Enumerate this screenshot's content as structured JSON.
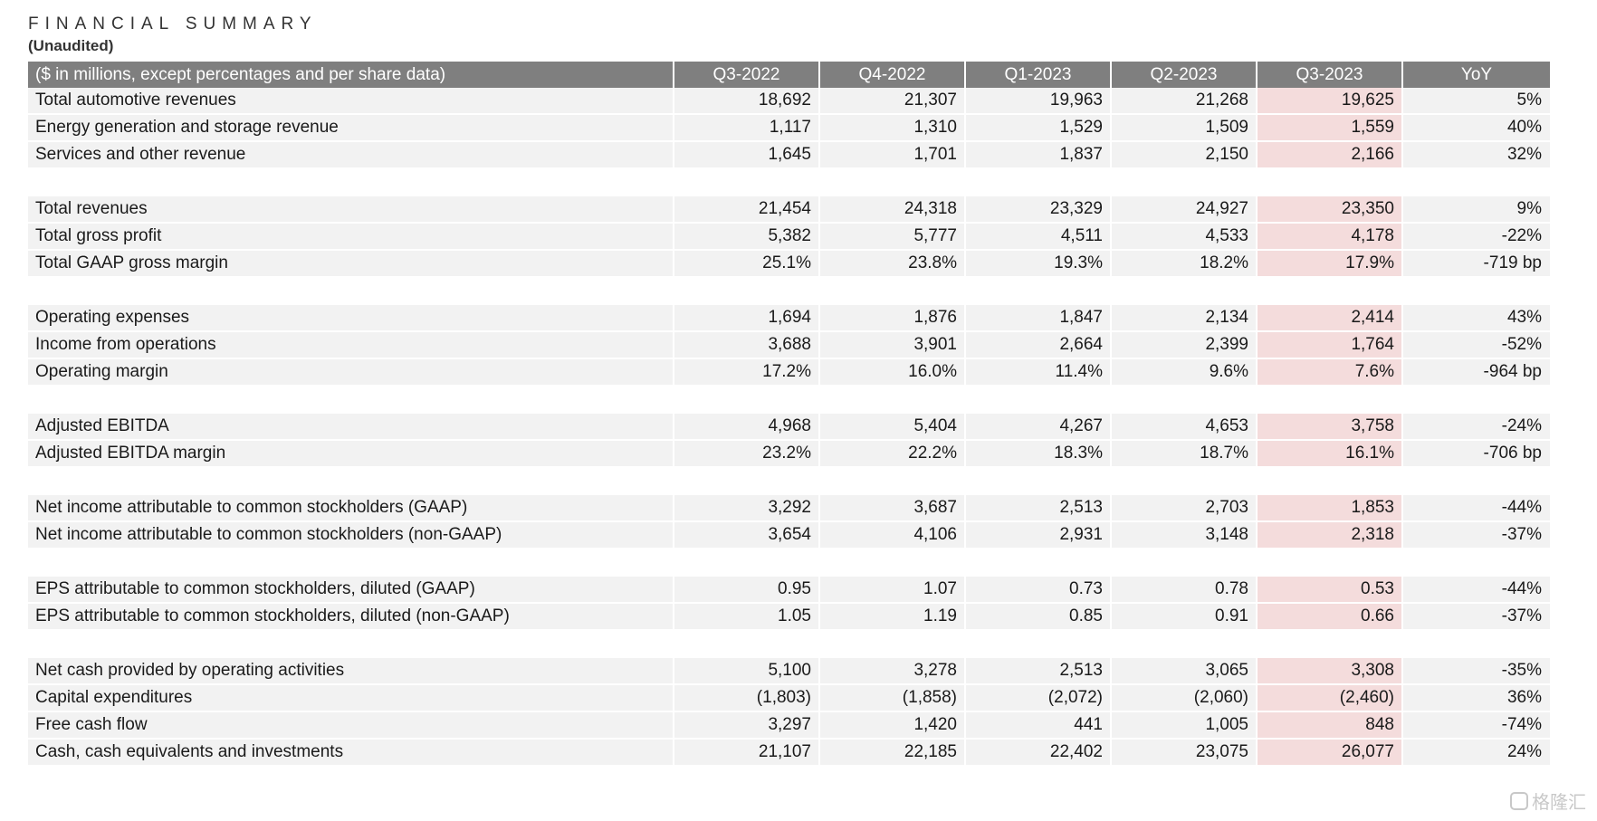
{
  "title": "FINANCIAL SUMMARY",
  "subtitle": "(Unaudited)",
  "table": {
    "columns": [
      "($ in millions, except percentages and per share data)",
      "Q3-2022",
      "Q4-2022",
      "Q1-2023",
      "Q2-2023",
      "Q3-2023",
      "YoY"
    ],
    "highlight_color": "#f4dcdc",
    "header_color": "#7f7f7f",
    "groups": [
      [
        [
          "Total automotive revenues",
          "18,692",
          "21,307",
          "19,963",
          "21,268",
          "19,625",
          "5%"
        ],
        [
          "Energy generation and storage revenue",
          "1,117",
          "1,310",
          "1,529",
          "1,509",
          "1,559",
          "40%"
        ],
        [
          "Services and other revenue",
          "1,645",
          "1,701",
          "1,837",
          "2,150",
          "2,166",
          "32%"
        ]
      ],
      [
        [
          "Total revenues",
          "21,454",
          "24,318",
          "23,329",
          "24,927",
          "23,350",
          "9%"
        ],
        [
          "Total gross profit",
          "5,382",
          "5,777",
          "4,511",
          "4,533",
          "4,178",
          "-22%"
        ],
        [
          "Total GAAP gross margin",
          "25.1%",
          "23.8%",
          "19.3%",
          "18.2%",
          "17.9%",
          "-719 bp"
        ]
      ],
      [
        [
          "Operating expenses",
          "1,694",
          "1,876",
          "1,847",
          "2,134",
          "2,414",
          "43%"
        ],
        [
          "Income from operations",
          "3,688",
          "3,901",
          "2,664",
          "2,399",
          "1,764",
          "-52%"
        ],
        [
          "Operating margin",
          "17.2%",
          "16.0%",
          "11.4%",
          "9.6%",
          "7.6%",
          "-964 bp"
        ]
      ],
      [
        [
          "Adjusted EBITDA",
          "4,968",
          "5,404",
          "4,267",
          "4,653",
          "3,758",
          "-24%"
        ],
        [
          "Adjusted EBITDA margin",
          "23.2%",
          "22.2%",
          "18.3%",
          "18.7%",
          "16.1%",
          "-706 bp"
        ]
      ],
      [
        [
          "Net income attributable to common stockholders (GAAP)",
          "3,292",
          "3,687",
          "2,513",
          "2,703",
          "1,853",
          "-44%"
        ],
        [
          "Net income attributable to common stockholders (non-GAAP)",
          "3,654",
          "4,106",
          "2,931",
          "3,148",
          "2,318",
          "-37%"
        ]
      ],
      [
        [
          "EPS attributable to common stockholders, diluted (GAAP)",
          "0.95",
          "1.07",
          "0.73",
          "0.78",
          "0.53",
          "-44%"
        ],
        [
          "EPS attributable to common stockholders, diluted (non-GAAP)",
          "1.05",
          "1.19",
          "0.85",
          "0.91",
          "0.66",
          "-37%"
        ]
      ],
      [
        [
          "Net cash provided by operating activities",
          "5,100",
          "3,278",
          "2,513",
          "3,065",
          "3,308",
          "-35%"
        ],
        [
          "Capital expenditures",
          "(1,803)",
          "(1,858)",
          "(2,072)",
          "(2,060)",
          "(2,460)",
          "36%"
        ],
        [
          "Free cash flow",
          "3,297",
          "1,420",
          "441",
          "1,005",
          "848",
          "-74%"
        ],
        [
          "Cash, cash equivalents and investments",
          "21,107",
          "22,185",
          "22,402",
          "23,075",
          "26,077",
          "24%"
        ]
      ]
    ]
  },
  "watermark": {
    "text": "格隆汇",
    "icon": "logo-icon"
  }
}
